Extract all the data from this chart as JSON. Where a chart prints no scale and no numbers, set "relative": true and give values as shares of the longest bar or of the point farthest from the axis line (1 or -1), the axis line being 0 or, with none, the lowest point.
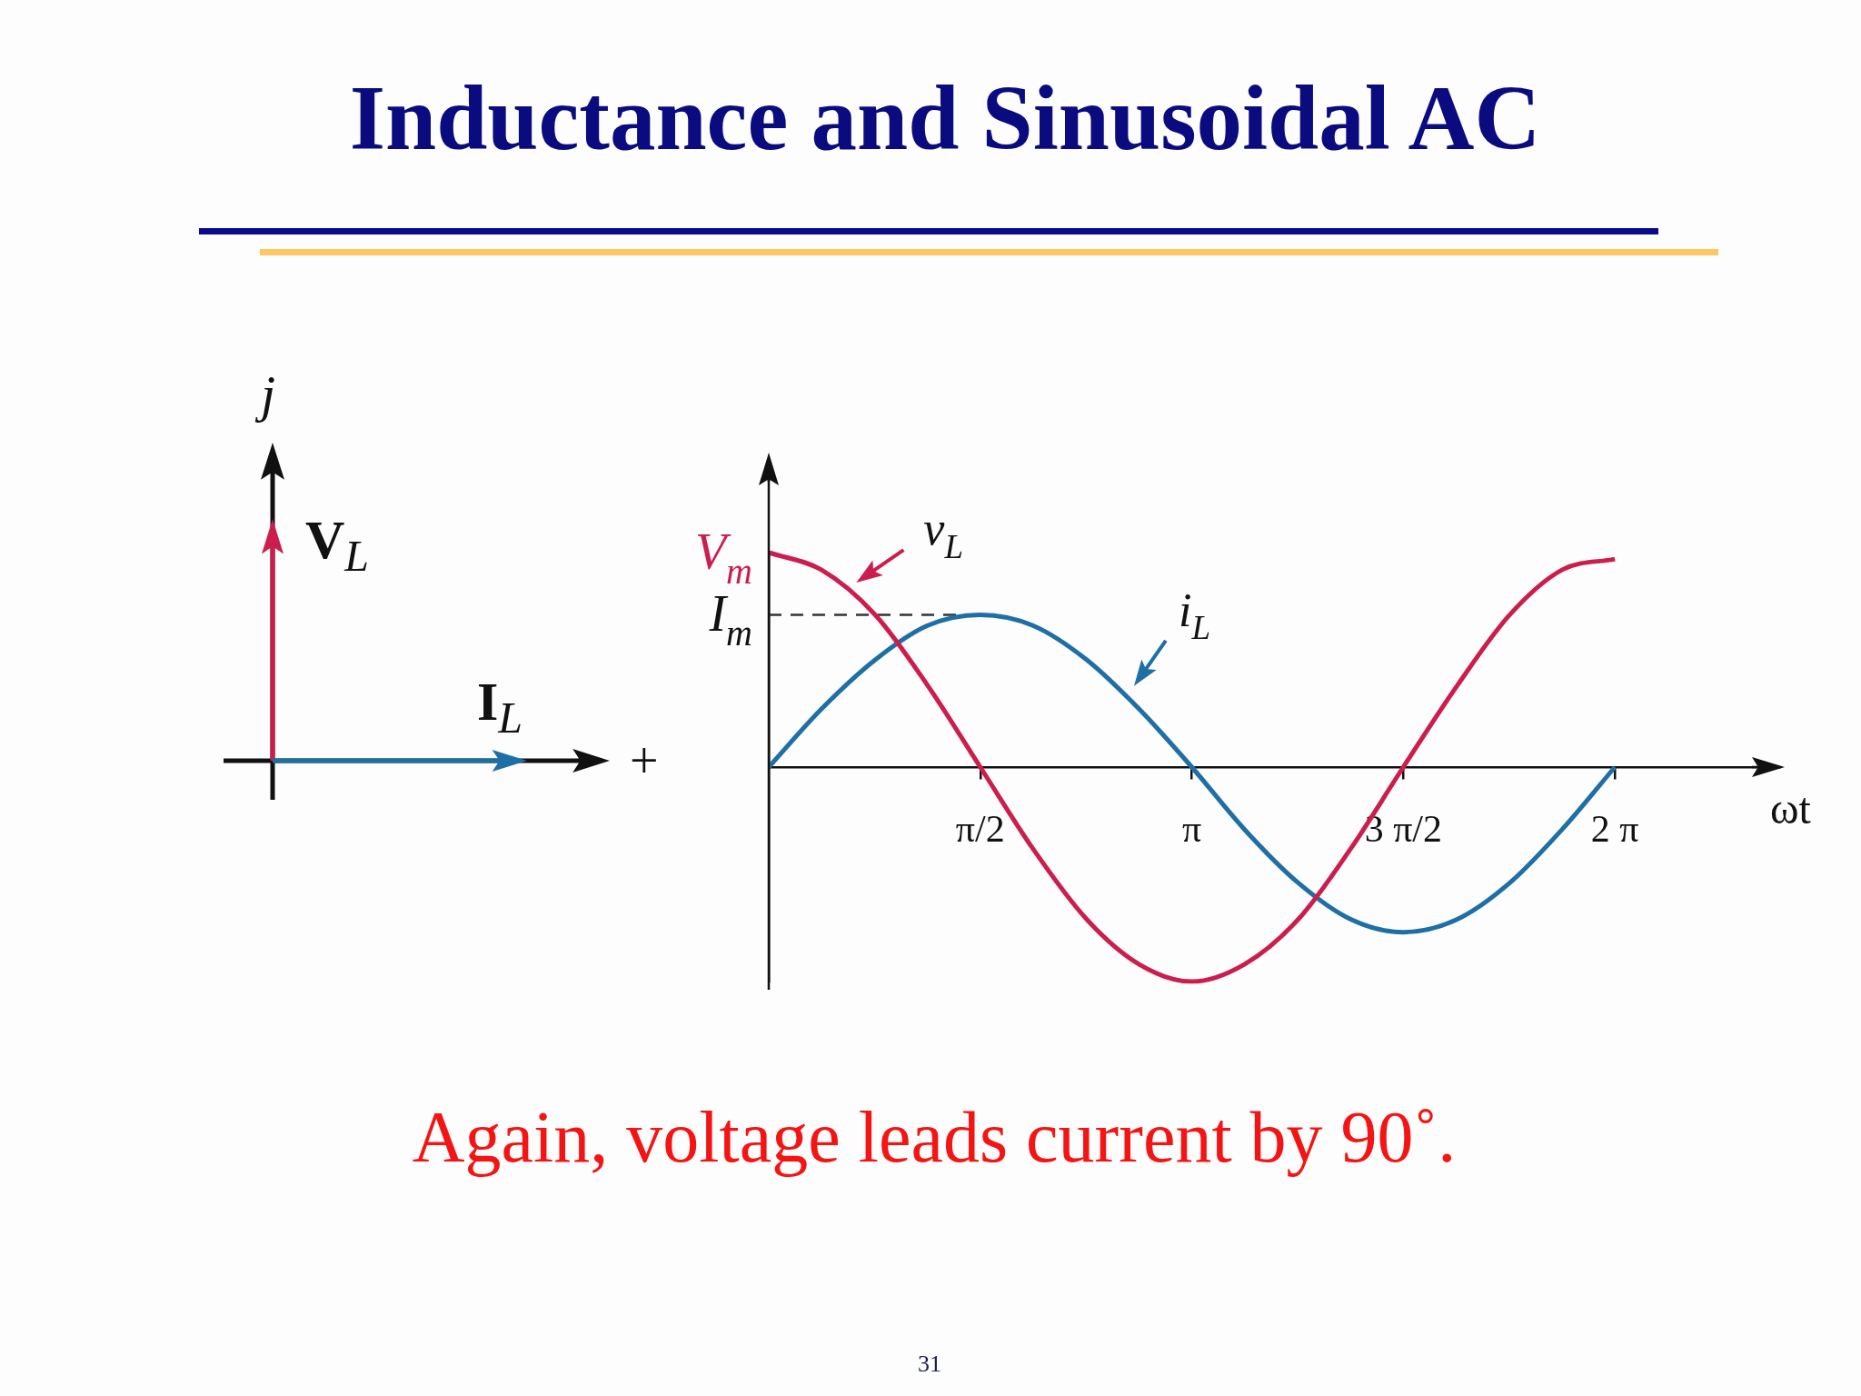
{
  "chart_data": {
    "type": "line",
    "title": "Inductance and Sinusoidal AC",
    "xlabel": "ωt",
    "relative": true,
    "marker": "none",
    "xlim": [
      0,
      7.5
    ],
    "xticks": [
      {
        "value": 1.57,
        "label": "π/2"
      },
      {
        "value": 3.14,
        "label": "π"
      },
      {
        "value": 4.71,
        "label": "3 π/2"
      },
      {
        "value": 6.28,
        "label": "2 π"
      }
    ],
    "x": [
      0,
      0.39,
      0.79,
      1.18,
      1.57,
      1.96,
      2.36,
      2.75,
      3.14,
      3.53,
      3.93,
      4.32,
      4.71,
      5.11,
      5.5,
      5.89,
      6.28
    ],
    "series": [
      {
        "name": "v$_{L}$",
        "color": "#cb1d4e",
        "values": [
          1,
          0.92,
          0.71,
          0.38,
          0,
          -0.38,
          -0.71,
          -0.92,
          -1,
          -0.92,
          -0.71,
          -0.38,
          0,
          0.38,
          0.71,
          0.92,
          0.97
        ]
      },
      {
        "name": "i$_{L}$",
        "color": "#1e6fa5",
        "values": [
          0,
          0.27,
          0.5,
          0.66,
          0.71,
          0.66,
          0.5,
          0.27,
          0,
          -0.29,
          -0.54,
          -0.71,
          -0.77,
          -0.71,
          -0.54,
          -0.29,
          0
        ]
      },
      {
        "color": "#333333",
        "x": [
          0,
          1.4
        ],
        "values": [
          0.71,
          0.71
        ],
        "line_style": "dashed"
      }
    ],
    "annotations": [
      "j",
      "V$_{L}$",
      "I$_{L}$",
      "+",
      {
        "text": "V$_{m}$",
        "x": 0,
        "y": 1
      },
      {
        "text": "I$_{m}$",
        "x": 0,
        "y": 0.71
      },
      "Again, voltage leads current by 90˚.",
      "31"
    ]
  }
}
